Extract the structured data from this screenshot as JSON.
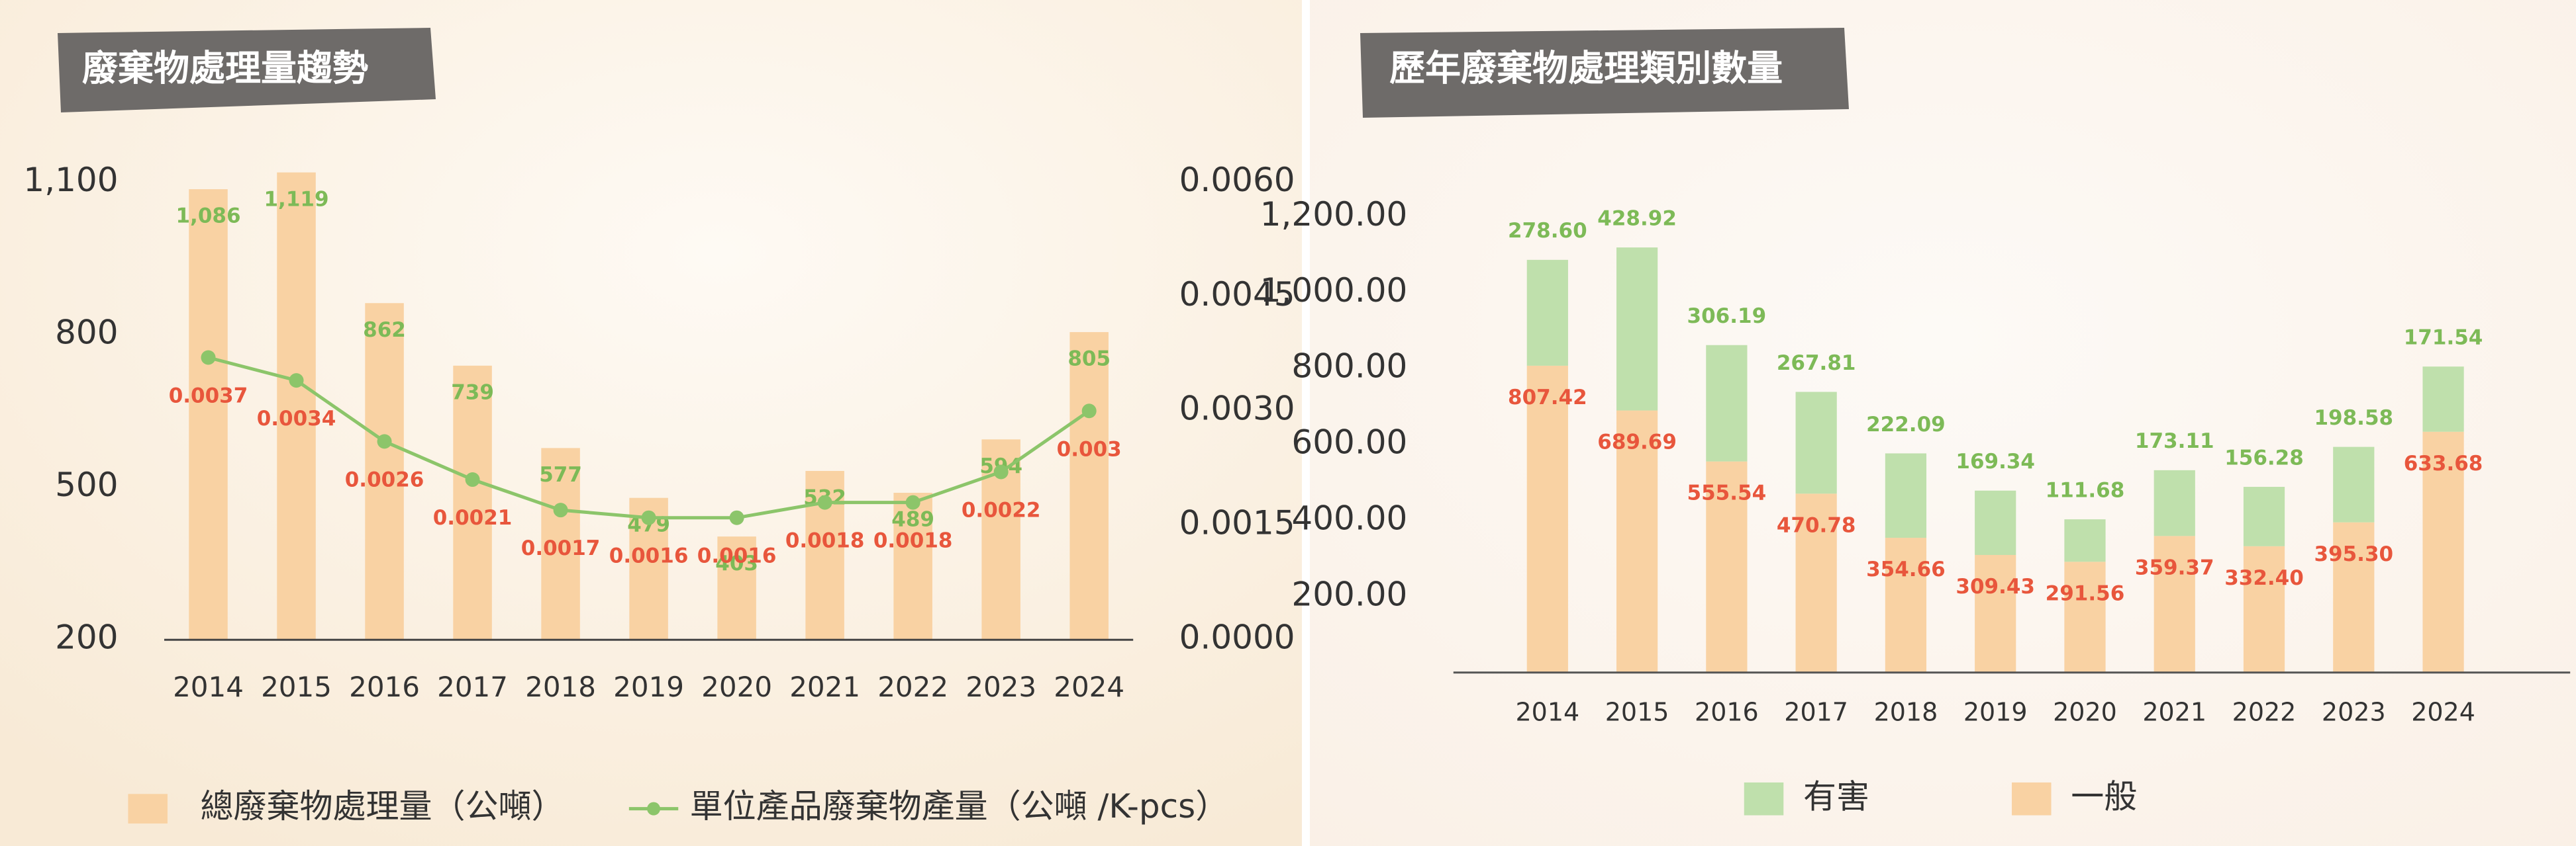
{
  "chart_data": [
    {
      "type": "bar_line",
      "title": "廢棄物處理量趨勢",
      "categories": [
        "2014",
        "2015",
        "2016",
        "2017",
        "2018",
        "2019",
        "2020",
        "2021",
        "2022",
        "2023",
        "2024"
      ],
      "series": [
        {
          "name": "總廢棄物處理量（公噸）",
          "type": "bar",
          "color": "#f9d2a3",
          "label_color": "#7dba57",
          "values": [
            1086,
            1119,
            862,
            739,
            577,
            479,
            403,
            532,
            489,
            594,
            805
          ],
          "value_labels": [
            "1,086",
            "1,119",
            "862",
            "739",
            "577",
            "479",
            "403",
            "532",
            "489",
            "594",
            "805"
          ]
        },
        {
          "name": "單位產品廢棄物產量（公噸 /K-pcs）",
          "type": "line",
          "axis": "y2",
          "color": "#8cc56a",
          "label_color": "#e8563c",
          "values": [
            0.0037,
            0.0034,
            0.0026,
            0.0021,
            0.0017,
            0.0016,
            0.0016,
            0.0018,
            0.0018,
            0.0022,
            0.003
          ]
        }
      ],
      "ylim": [
        200,
        1100
      ],
      "yticks": [
        200,
        500,
        800,
        {
          "value": 1100,
          "label": "1,100"
        }
      ],
      "y2lim": [
        0,
        0.006
      ],
      "y2ticks": [
        {
          "value": 0,
          "label": "0.0000"
        },
        {
          "value": 0.0015,
          "label": "0.0015"
        },
        {
          "value": 0.003,
          "label": "0.0030"
        },
        {
          "value": 0.0045,
          "label": "0.0045"
        },
        {
          "value": 0.006,
          "label": "0.0060"
        }
      ]
    },
    {
      "type": "stacked_bar",
      "title": "歷年廢棄物處理類別數量",
      "categories": [
        "2014",
        "2015",
        "2016",
        "2017",
        "2018",
        "2019",
        "2020",
        "2021",
        "2022",
        "2023",
        "2024"
      ],
      "series": [
        {
          "name": "一般",
          "color": "#f9d2a3",
          "label_color": "#e8563c",
          "values": [
            807.42,
            689.69,
            555.54,
            470.78,
            354.66,
            309.43,
            291.56,
            359.37,
            332.4,
            395.3,
            633.68
          ],
          "value_labels": [
            "807.42",
            "689.69",
            "555.54",
            "470.78",
            "354.66",
            "309.43",
            "291.56",
            "359.37",
            "332.40",
            "395.30",
            "633.68"
          ]
        },
        {
          "name": "有害",
          "color": "#bfe0ac",
          "label_color": "#7dba57",
          "values": [
            278.6,
            428.92,
            306.19,
            267.81,
            222.09,
            169.34,
            111.68,
            173.11,
            156.28,
            198.58,
            171.54
          ],
          "value_labels": [
            "278.60",
            "428.92",
            "306.19",
            "267.81",
            "222.09",
            "169.34",
            "111.68",
            "173.11",
            "156.28",
            "198.58",
            "171.54"
          ]
        }
      ],
      "legend_order": [
        1,
        0
      ],
      "ylim": [
        0,
        1200
      ],
      "yticks": [
        {
          "value": 200,
          "label": "200.00"
        },
        {
          "value": 400,
          "label": "400.00"
        },
        {
          "value": 600,
          "label": "600.00"
        },
        {
          "value": 800,
          "label": "800.00"
        },
        {
          "value": 1000,
          "label": "1,000.00"
        },
        {
          "value": 1200,
          "label": "1,200.00"
        }
      ]
    }
  ]
}
